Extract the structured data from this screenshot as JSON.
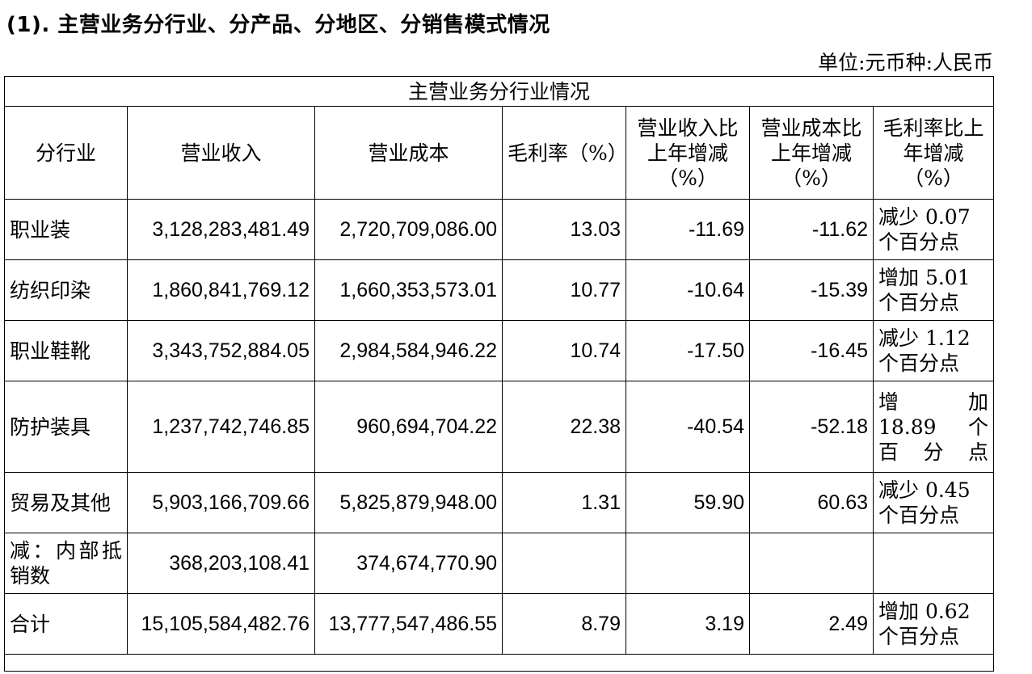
{
  "heading": "(1). 主营业务分行业、分产品、分地区、分销售模式情况",
  "unit": "单位:元币种:人民币",
  "table": {
    "group_title": "主营业务分行业情况",
    "headers": [
      "分行业",
      "营业收入",
      "营业成本",
      "毛利率（%）",
      "营业收入比上年增减（%）",
      "营业成本比上年增减（%）",
      "毛利率比上年增减（%）"
    ],
    "rows": [
      {
        "label": "职业装",
        "revenue": "3,128,283,481.49",
        "cost": "2,720,709,086.00",
        "margin": "13.03",
        "rev_change": "-11.69",
        "cost_change": "-11.62",
        "margin_change": "减少 0.07 个百分点"
      },
      {
        "label": "纺织印染",
        "revenue": "1,860,841,769.12",
        "cost": "1,660,353,573.01",
        "margin": "10.77",
        "rev_change": "-10.64",
        "cost_change": "-15.39",
        "margin_change": "增加 5.01 个百分点"
      },
      {
        "label": "职业鞋靴",
        "revenue": "3,343,752,884.05",
        "cost": "2,984,584,946.22",
        "margin": "10.74",
        "rev_change": "-17.50",
        "cost_change": "-16.45",
        "margin_change": "减少 1.12 个百分点"
      },
      {
        "label": "防护装具",
        "revenue": "1,237,742,746.85",
        "cost": "960,694,704.22",
        "margin": "22.38",
        "rev_change": "-40.54",
        "cost_change": "-52.18",
        "margin_change": "增 加 18.89 个 百分点"
      },
      {
        "label": "贸易及其他",
        "revenue": "5,903,166,709.66",
        "cost": "5,825,879,948.00",
        "margin": "1.31",
        "rev_change": "59.90",
        "cost_change": "60.63",
        "margin_change": "减少 0.45 个百分点"
      },
      {
        "label": "减：内部抵销数",
        "revenue": "368,203,108.41",
        "cost": "374,674,770.90",
        "margin": "",
        "rev_change": "",
        "cost_change": "",
        "margin_change": ""
      },
      {
        "label": "合计",
        "revenue": "15,105,584,482.76",
        "cost": "13,777,547,486.55",
        "margin": "8.79",
        "rev_change": "3.19",
        "cost_change": "2.49",
        "margin_change": "增加 0.62 个百分点"
      }
    ]
  }
}
